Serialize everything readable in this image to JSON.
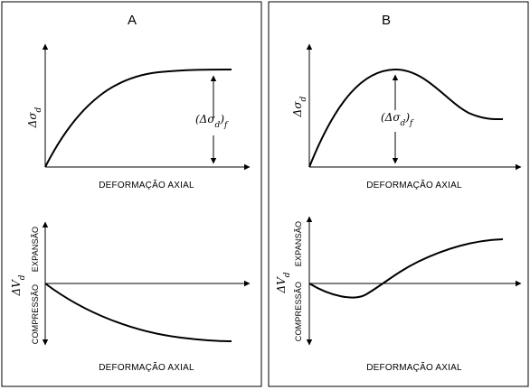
{
  "panels": [
    {
      "title": "A",
      "top": {
        "y_label": "Δσd",
        "x_label": "DEFORMAÇÃO AXIAL",
        "annotation": "(Δσd)f"
      },
      "bottom": {
        "y_label": "ΔVd",
        "x_label": "DEFORMAÇÃO AXIAL",
        "y_up_label": "EXPANSÃO",
        "y_down_label": "COMPRESSÃO"
      }
    },
    {
      "title": "B",
      "top": {
        "y_label": "Δσd",
        "x_label": "DEFORMAÇÃO AXIAL",
        "annotation": "(Δσd)f"
      },
      "bottom": {
        "y_label": "ΔVd",
        "x_label": "DEFORMAÇÃO AXIAL",
        "y_up_label": "EXPANSÃO",
        "y_down_label": "COMPRESSÃO"
      }
    }
  ]
}
